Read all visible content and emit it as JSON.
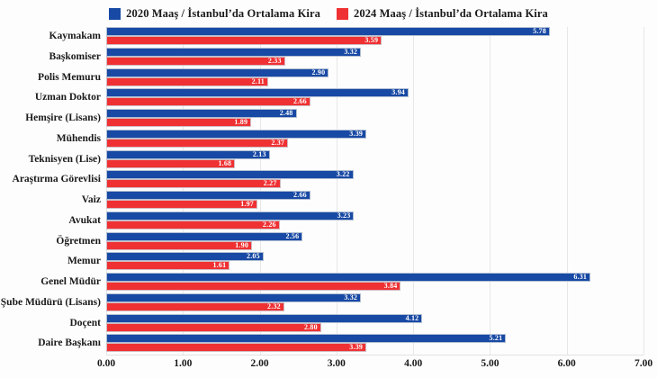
{
  "accent_colors": {
    "blue_2020": "#1849A4",
    "red_2024": "#EF3133",
    "gridline": "#E7E7E7",
    "value_text": "#FFFFFF",
    "text": "#1A1A1A"
  },
  "legend": {
    "items": [
      {
        "label": "2020 Maaş / İstanbul’da Ortalama Kira",
        "color": "#1849A4"
      },
      {
        "label": "2024 Maaş / İstanbul’da Ortalama Kira",
        "color": "#EF3133"
      }
    ]
  },
  "chart_data": {
    "type": "bar",
    "orientation": "horizontal",
    "title": "",
    "xlabel": "",
    "ylabel": "",
    "xlim": [
      0,
      7
    ],
    "grid": true,
    "grid_interval": 1.0,
    "legend_position": "top",
    "x_ticks": [
      "0.00",
      "1.00",
      "2.00",
      "3.00",
      "4.00",
      "5.00",
      "6.00",
      "7.00"
    ],
    "categories": [
      "Kaymakam",
      "Başkomiser",
      "Polis Memuru",
      "Uzman Doktor",
      "Hemşire (Lisans)",
      "Mühendis",
      "Teknisyen (Lise)",
      "Araştırma Görevlisi",
      "Vaiz",
      "Avukat",
      "Öğretmen",
      "Memur",
      "Genel Müdür",
      "Şube Müdürü (Lisans)",
      "Doçent",
      "Daire Başkanı"
    ],
    "series": [
      {
        "name": "2020 Maaş / İstanbul’da Ortalama Kira",
        "color": "#1849A4",
        "values": [
          5.78,
          3.32,
          2.9,
          3.94,
          2.48,
          3.39,
          2.13,
          3.22,
          2.66,
          3.23,
          2.56,
          2.05,
          6.31,
          3.32,
          4.12,
          5.21
        ]
      },
      {
        "name": "2024 Maaş / İstanbul’da Ortalama Kira",
        "color": "#EF3133",
        "values": [
          3.59,
          2.33,
          2.11,
          2.66,
          1.89,
          2.37,
          1.68,
          2.27,
          1.97,
          2.26,
          1.9,
          1.61,
          3.84,
          2.32,
          2.8,
          3.39
        ]
      }
    ]
  }
}
